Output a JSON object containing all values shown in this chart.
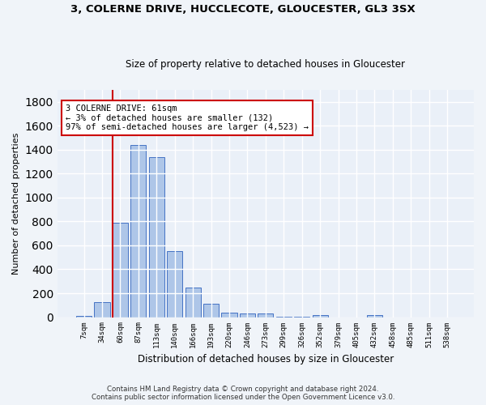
{
  "title_line1": "3, COLERNE DRIVE, HUCCLECOTE, GLOUCESTER, GL3 3SX",
  "title_line2": "Size of property relative to detached houses in Gloucester",
  "xlabel": "Distribution of detached houses by size in Gloucester",
  "ylabel": "Number of detached properties",
  "bar_labels": [
    "7sqm",
    "34sqm",
    "60sqm",
    "87sqm",
    "113sqm",
    "140sqm",
    "166sqm",
    "193sqm",
    "220sqm",
    "246sqm",
    "273sqm",
    "299sqm",
    "326sqm",
    "352sqm",
    "379sqm",
    "405sqm",
    "432sqm",
    "458sqm",
    "485sqm",
    "511sqm",
    "538sqm"
  ],
  "bar_values": [
    10,
    125,
    790,
    1440,
    1340,
    555,
    248,
    110,
    35,
    30,
    30,
    5,
    5,
    20,
    0,
    0,
    20,
    0,
    0,
    0,
    0
  ],
  "bar_color": "#aec6e8",
  "bar_edge_color": "#4472c4",
  "vline_color": "#cc0000",
  "annotation_text": "3 COLERNE DRIVE: 61sqm\n← 3% of detached houses are smaller (132)\n97% of semi-detached houses are larger (4,523) →",
  "annotation_box_color": "#ffffff",
  "annotation_box_edge": "#cc0000",
  "ylim": [
    0,
    1900
  ],
  "background_color": "#eaf0f8",
  "fig_background_color": "#f0f4f9",
  "grid_color": "#ffffff",
  "footer_line1": "Contains HM Land Registry data © Crown copyright and database right 2024.",
  "footer_line2": "Contains public sector information licensed under the Open Government Licence v3.0."
}
